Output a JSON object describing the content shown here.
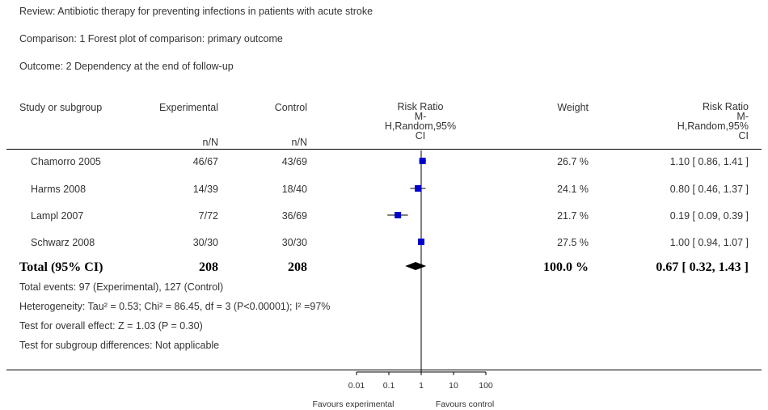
{
  "meta": {
    "review": "Review:   Antibiotic therapy for preventing infections in patients with acute stroke",
    "comparison": "Comparison:   1 Forest plot of comparison: primary outcome",
    "outcome": "Outcome:   2 Dependency at the end of follow-up"
  },
  "headers": {
    "study": "Study or subgroup",
    "experimental": "Experimental",
    "control": "Control",
    "rr_plot_line1": "Risk Ratio",
    "rr_plot_line2": "M-",
    "rr_plot_line3": "H,Random,95%",
    "rr_plot_line4": "CI",
    "weight": "Weight",
    "rr_line1": "Risk Ratio",
    "rr_line2": "M-",
    "rr_line3": "H,Random,95%",
    "rr_line4": "CI",
    "exp_sub": "n/N",
    "ctrl_sub": "n/N"
  },
  "studies": [
    {
      "name": "Chamorro 2005",
      "experimental": "46/67",
      "control": "43/69",
      "weight": "26.7 %",
      "ci_text": "1.10 [ 0.86, 1.41 ]"
    },
    {
      "name": "Harms 2008",
      "experimental": "14/39",
      "control": "18/40",
      "weight": "24.1 %",
      "ci_text": "0.80 [ 0.46, 1.37 ]"
    },
    {
      "name": "Lampl 2007",
      "experimental": "7/72",
      "control": "36/69",
      "weight": "21.7 %",
      "ci_text": "0.19 [ 0.09, 0.39 ]"
    },
    {
      "name": "Schwarz 2008",
      "experimental": "30/30",
      "control": "30/30",
      "weight": "27.5 %",
      "ci_text": "1.00 [ 0.94, 1.07 ]"
    }
  ],
  "total": {
    "label": "Total (95% CI)",
    "experimental": "208",
    "control": "208",
    "weight": "100.0 %",
    "ci_text": "0.67 [ 0.32, 1.43 ]"
  },
  "footer": {
    "events": "Total events: 97 (Experimental), 127 (Control)",
    "heterogeneity": "Heterogeneity: Tau² = 0.53; Chi² = 86.45, df = 3 (P<0.00001); I² =97%",
    "overall": "Test for overall effect: Z = 1.03 (P = 0.30)",
    "subgroup": "Test for subgroup differences: Not applicable"
  },
  "axis": {
    "favours_left": "Favours experimental",
    "favours_right": "Favours control"
  },
  "chart_data": {
    "type": "forest",
    "scale": "log",
    "xlim": [
      0.01,
      100
    ],
    "null_value": 1,
    "ticks": [
      {
        "value": 0.01,
        "label": "0.01"
      },
      {
        "value": 0.1,
        "label": "0.1"
      },
      {
        "value": 1,
        "label": "1"
      },
      {
        "value": 10,
        "label": "10"
      },
      {
        "value": 100,
        "label": "100"
      }
    ],
    "marker_color": "#0000cc",
    "studies": [
      {
        "name": "Chamorro 2005",
        "rr": 1.1,
        "lo": 0.86,
        "hi": 1.41,
        "weight": 26.7
      },
      {
        "name": "Harms 2008",
        "rr": 0.8,
        "lo": 0.46,
        "hi": 1.37,
        "weight": 24.1
      },
      {
        "name": "Lampl 2007",
        "rr": 0.19,
        "lo": 0.09,
        "hi": 0.39,
        "weight": 21.7
      },
      {
        "name": "Schwarz 2008",
        "rr": 1.0,
        "lo": 0.94,
        "hi": 1.07,
        "weight": 27.5
      }
    ],
    "pooled": {
      "rr": 0.67,
      "lo": 0.32,
      "hi": 1.43
    }
  }
}
